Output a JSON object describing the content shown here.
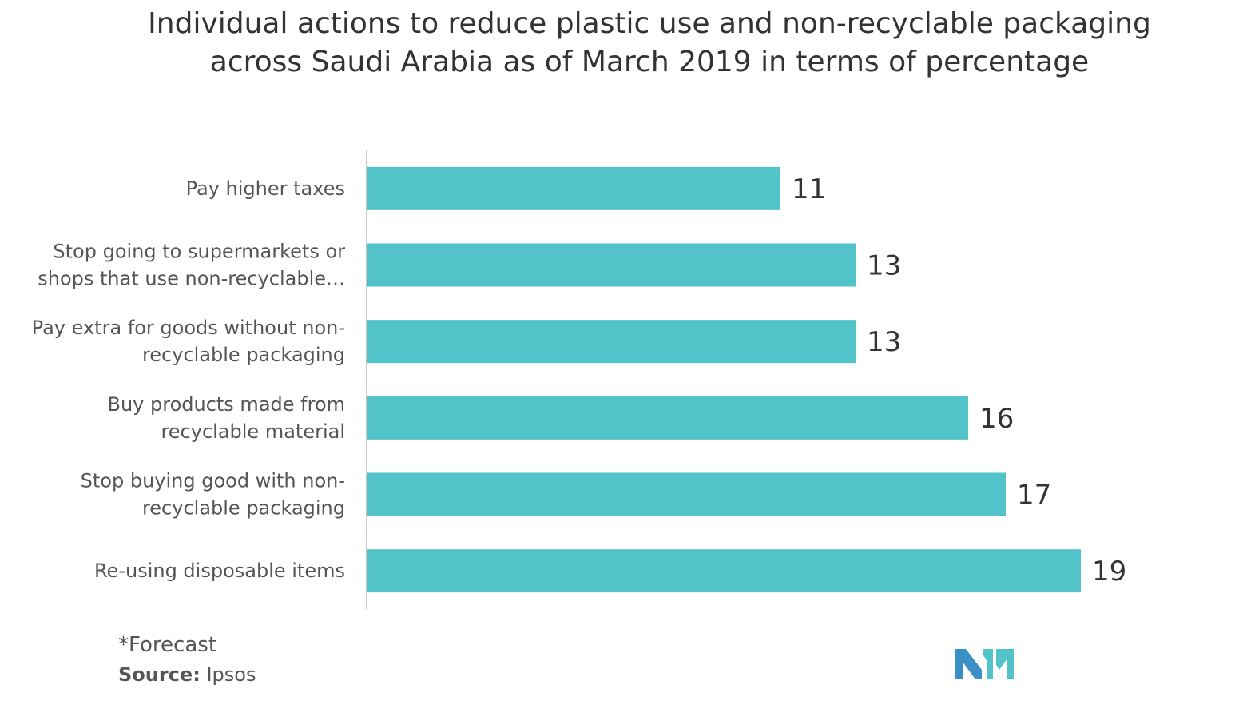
{
  "chart_data": {
    "type": "bar",
    "orientation": "horizontal",
    "title": "Individual actions to reduce plastic use and non-recyclable packaging across Saudi Arabia as of March 2019 in terms of percentage",
    "categories": [
      [
        "Pay higher taxes"
      ],
      [
        "Stop going to supermarkets or",
        "shops that use non-recyclable…"
      ],
      [
        "Pay extra for goods without non-",
        "recyclable packaging"
      ],
      [
        "Buy products made from",
        "recyclable material"
      ],
      [
        "Stop buying good with non-",
        "recyclable packaging"
      ],
      [
        "Re-using disposable items"
      ]
    ],
    "values": [
      11,
      13,
      13,
      16,
      17,
      19
    ],
    "xlim": [
      0,
      20
    ],
    "grid": false,
    "bar_color": "#52c3c9"
  },
  "footer": {
    "note": "*Forecast",
    "source_label": "Source:",
    "source_value": "Ipsos"
  },
  "logo": {
    "icon": "mordor-intelligence-logo",
    "colors": [
      "#3a8fc4",
      "#52c3c9"
    ]
  }
}
